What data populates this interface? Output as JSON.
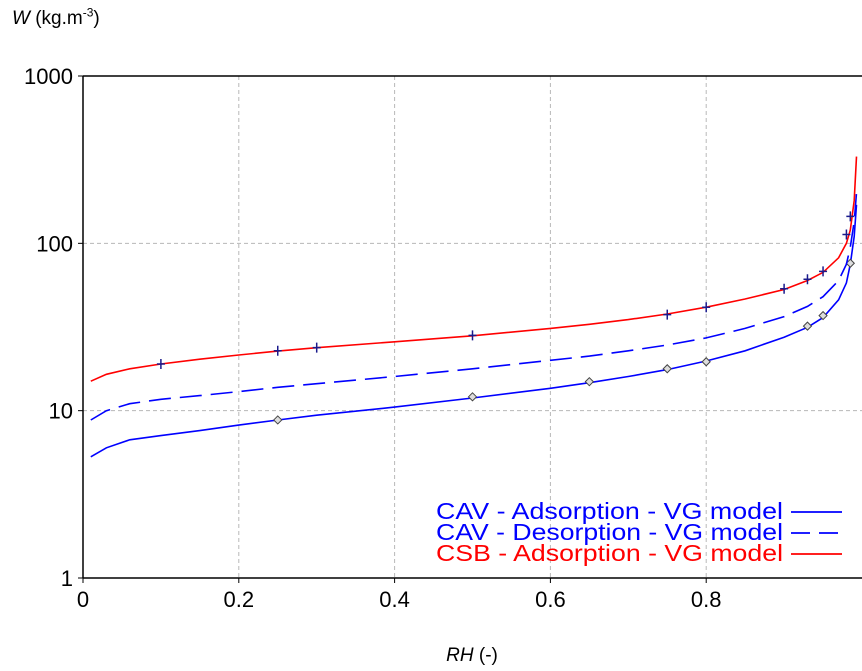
{
  "chart_data": {
    "type": "line",
    "y_axis_label": {
      "var": "W",
      "unit_base": " (kg.m",
      "unit_exp": "-3",
      "unit_close": ")"
    },
    "x_axis_label": {
      "var": "RH",
      "unit": " (-)"
    },
    "y_scale": "log",
    "xlim": [
      0,
      1
    ],
    "ylim": [
      1,
      1000
    ],
    "x_ticks": [
      "0",
      "0.2",
      "0.4",
      "0.6",
      "0.8"
    ],
    "x_tick_values": [
      0,
      0.2,
      0.4,
      0.6,
      0.8
    ],
    "y_ticks": [
      "1",
      "10",
      "100",
      "1000"
    ],
    "y_tick_values": [
      1,
      10,
      100,
      1000
    ],
    "grid": true,
    "legend_position": "bottom-right",
    "series": [
      {
        "name": "CAV - Adsorption - VG model",
        "color": "#0000ff",
        "dash": "solid",
        "marker": "diamond",
        "curve": [
          [
            0.01,
            5.3
          ],
          [
            0.03,
            6.0
          ],
          [
            0.06,
            6.7
          ],
          [
            0.1,
            7.1
          ],
          [
            0.15,
            7.6
          ],
          [
            0.2,
            8.2
          ],
          [
            0.25,
            8.8
          ],
          [
            0.3,
            9.4
          ],
          [
            0.4,
            10.5
          ],
          [
            0.5,
            11.9
          ],
          [
            0.6,
            13.6
          ],
          [
            0.65,
            14.7
          ],
          [
            0.7,
            16.0
          ],
          [
            0.75,
            17.6
          ],
          [
            0.8,
            19.8
          ],
          [
            0.85,
            22.8
          ],
          [
            0.9,
            27.5
          ],
          [
            0.93,
            31.5
          ],
          [
            0.95,
            36.0
          ],
          [
            0.97,
            46.0
          ],
          [
            0.98,
            58.0
          ],
          [
            0.985,
            75.0
          ],
          [
            0.99,
            110.0
          ],
          [
            0.993,
            170.0
          ]
        ],
        "markers": [
          [
            0.25,
            8.8
          ],
          [
            0.5,
            12.1
          ],
          [
            0.65,
            14.9
          ],
          [
            0.75,
            17.8
          ],
          [
            0.8,
            19.6
          ],
          [
            0.93,
            32.0
          ],
          [
            0.95,
            37.0
          ],
          [
            0.985,
            76.0
          ]
        ]
      },
      {
        "name": "CAV - Desorption - VG model",
        "color": "#0000ff",
        "dash": "dashed",
        "marker": "none",
        "curve": [
          [
            0.01,
            8.8
          ],
          [
            0.03,
            10.0
          ],
          [
            0.06,
            11.0
          ],
          [
            0.1,
            11.7
          ],
          [
            0.15,
            12.3
          ],
          [
            0.2,
            13.0
          ],
          [
            0.25,
            13.8
          ],
          [
            0.3,
            14.5
          ],
          [
            0.4,
            16.0
          ],
          [
            0.5,
            17.8
          ],
          [
            0.6,
            20.0
          ],
          [
            0.65,
            21.2
          ],
          [
            0.7,
            22.8
          ],
          [
            0.75,
            24.7
          ],
          [
            0.8,
            27.2
          ],
          [
            0.85,
            31.0
          ],
          [
            0.9,
            36.5
          ],
          [
            0.93,
            42.0
          ],
          [
            0.95,
            48.0
          ],
          [
            0.97,
            60.0
          ],
          [
            0.98,
            75.0
          ],
          [
            0.985,
            95.0
          ],
          [
            0.99,
            135.0
          ],
          [
            0.993,
            200.0
          ]
        ],
        "markers": []
      },
      {
        "name": "CSB - Adsorption - VG model",
        "color": "#ff0000",
        "dash": "solid",
        "marker": "plus",
        "marker_color": "#1a1a8c",
        "curve": [
          [
            0.01,
            15.0
          ],
          [
            0.03,
            16.5
          ],
          [
            0.06,
            17.8
          ],
          [
            0.1,
            19.0
          ],
          [
            0.15,
            20.3
          ],
          [
            0.2,
            21.5
          ],
          [
            0.25,
            22.7
          ],
          [
            0.3,
            23.8
          ],
          [
            0.4,
            25.8
          ],
          [
            0.5,
            28.0
          ],
          [
            0.6,
            31.0
          ],
          [
            0.65,
            32.8
          ],
          [
            0.7,
            35.0
          ],
          [
            0.75,
            37.8
          ],
          [
            0.8,
            41.5
          ],
          [
            0.85,
            46.5
          ],
          [
            0.9,
            53.0
          ],
          [
            0.93,
            60.0
          ],
          [
            0.95,
            67.0
          ],
          [
            0.97,
            82.0
          ],
          [
            0.98,
            100.0
          ],
          [
            0.985,
            120.0
          ],
          [
            0.99,
            180.0
          ],
          [
            0.993,
            330.0
          ]
        ],
        "markers": [
          [
            0.1,
            19.0
          ],
          [
            0.25,
            22.8
          ],
          [
            0.3,
            23.8
          ],
          [
            0.5,
            28.2
          ],
          [
            0.75,
            37.5
          ],
          [
            0.8,
            41.5
          ],
          [
            0.9,
            53.5
          ],
          [
            0.93,
            61.0
          ],
          [
            0.95,
            68.0
          ],
          [
            0.98,
            113.0
          ],
          [
            0.985,
            145.0
          ]
        ]
      }
    ]
  }
}
